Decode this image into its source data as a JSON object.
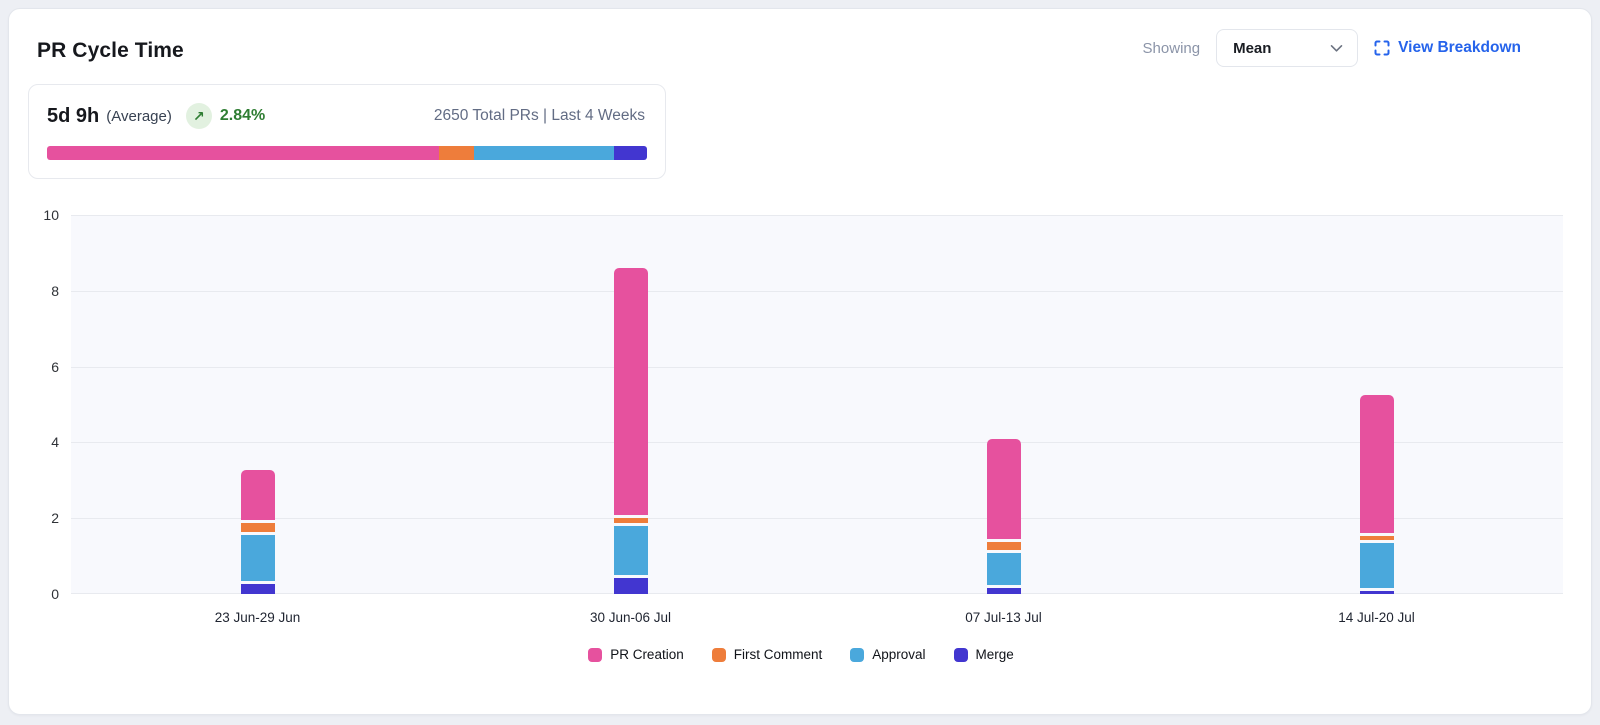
{
  "header": {
    "title": "PR Cycle Time",
    "showing_label": "Showing",
    "metric_dropdown": {
      "value": "Mean"
    },
    "view_breakdown_label": "View Breakdown"
  },
  "summary": {
    "value": "5d 9h",
    "value_suffix": "(Average)",
    "trend_icon": "arrow-up-right",
    "trend_pct": "2.84%",
    "trend_color": "#2E7D32",
    "meta_text": "2650 Total PRs | Last 4 Weeks",
    "distribution": [
      {
        "name": "PR Creation",
        "color": "#E6519E",
        "pct": 65.4
      },
      {
        "name": "First Comment",
        "color": "#EE7D3B",
        "pct": 5.7
      },
      {
        "name": "Approval",
        "color": "#4AA8DC",
        "pct": 23.4
      },
      {
        "name": "Merge",
        "color": "#4236D0",
        "pct": 5.5
      }
    ]
  },
  "chart_data": {
    "type": "bar",
    "stacked": true,
    "title": "PR Cycle Time",
    "categories": [
      "23 Jun-29 Jun",
      "30 Jun-06 Jul",
      "07 Jul-13 Jul",
      "14 Jul-20 Jul"
    ],
    "series": [
      {
        "name": "Merge",
        "color": "#4236D0",
        "values": [
          0.3,
          0.45,
          0.2,
          0.13
        ]
      },
      {
        "name": "Approval",
        "color": "#4AA8DC",
        "values": [
          1.3,
          1.38,
          0.93,
          1.25
        ]
      },
      {
        "name": "First Comment",
        "color": "#EE7D3B",
        "values": [
          0.32,
          0.22,
          0.27,
          0.2
        ]
      },
      {
        "name": "PR Creation",
        "color": "#E6519E",
        "values": [
          1.38,
          6.6,
          2.72,
          3.7
        ]
      }
    ],
    "stack_totals": [
      3.3,
      8.65,
      4.12,
      5.28
    ],
    "ylim": [
      0,
      10
    ],
    "yticks": [
      0,
      2,
      4,
      6,
      8,
      10
    ],
    "xlabel": "",
    "ylabel": "",
    "grid": true,
    "legend_position": "bottom",
    "legend_order": [
      "PR Creation",
      "First Comment",
      "Approval",
      "Merge"
    ],
    "plot_background": "#F8F9FD"
  },
  "colors": {
    "accent_link": "#2563EB",
    "positive_green": "#2E7D32",
    "positive_green_bg": "#E2F1E0",
    "card_border": "#E3E6EC",
    "gridline": "#E8EAEF"
  }
}
